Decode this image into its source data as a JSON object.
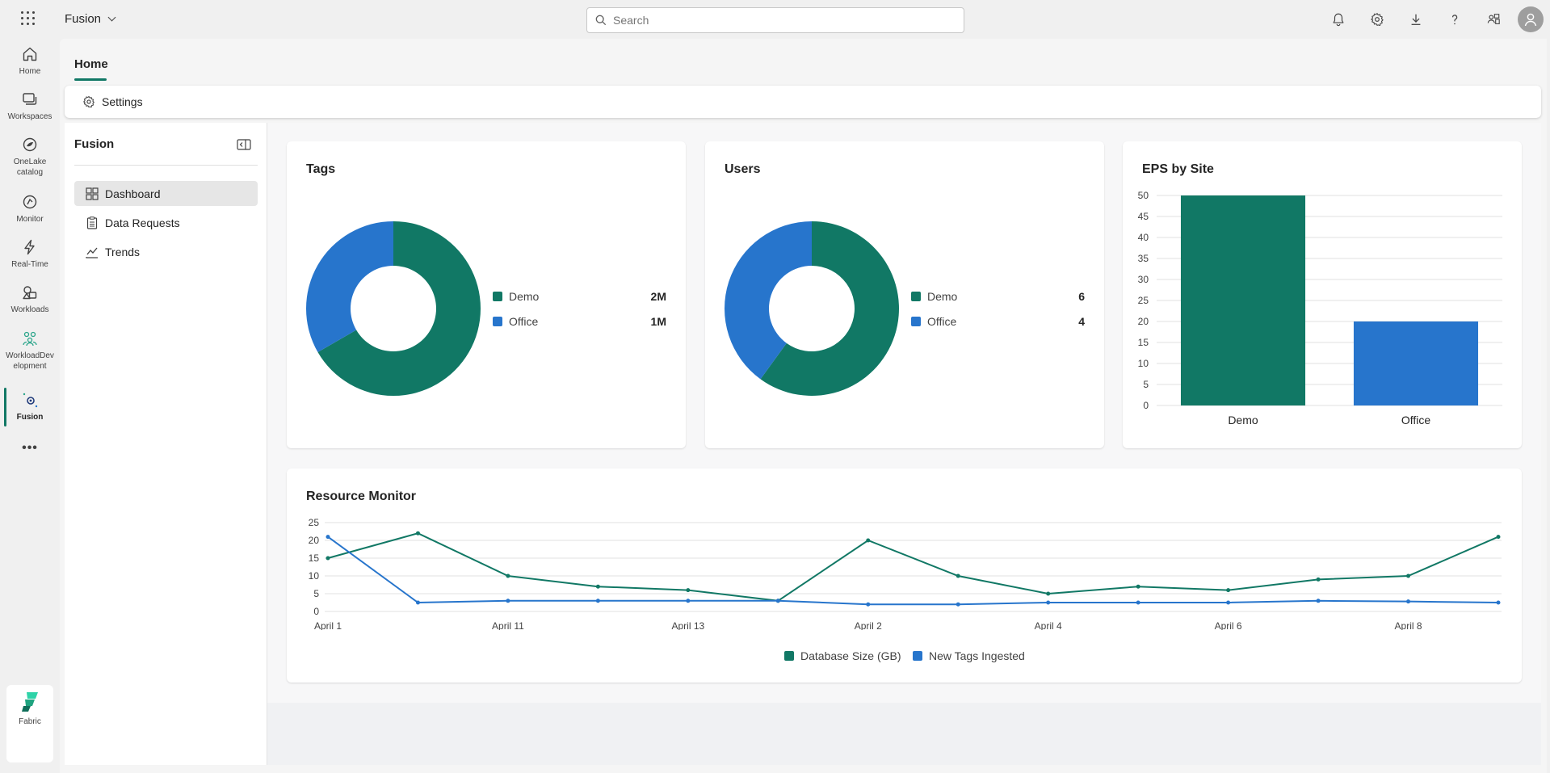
{
  "app": {
    "name": "Fusion"
  },
  "search": {
    "placeholder": "Search"
  },
  "header_icons": [
    "bell-icon",
    "gear-icon",
    "download-icon",
    "help-icon",
    "share-icon",
    "avatar"
  ],
  "leftnav": {
    "items": [
      {
        "label": "Home",
        "icon": "home-icon"
      },
      {
        "label": "Workspaces",
        "icon": "workspaces-icon"
      },
      {
        "label": "OneLake catalog",
        "icon": "onelake-icon"
      },
      {
        "label": "Monitor",
        "icon": "monitor-icon"
      },
      {
        "label": "Real-Time",
        "icon": "lightning-icon"
      },
      {
        "label": "Workloads",
        "icon": "workloads-icon"
      },
      {
        "label": "WorkloadDevelopment",
        "icon": "workload-dev-icon"
      },
      {
        "label": "Fusion",
        "icon": "fusion-icon"
      }
    ],
    "more_label": "•••",
    "fabric_label": "Fabric"
  },
  "tabs": {
    "home": "Home"
  },
  "settings_bar": {
    "label": "Settings"
  },
  "sidepanel": {
    "title": "Fusion",
    "items": [
      {
        "label": "Dashboard",
        "icon": "dashboard-icon"
      },
      {
        "label": "Data Requests",
        "icon": "clipboard-icon"
      },
      {
        "label": "Trends",
        "icon": "trend-icon"
      }
    ]
  },
  "colors": {
    "demo": "#117865",
    "office": "#2775cc",
    "accent": "#117865"
  },
  "cards": {
    "tags": {
      "title": "Tags",
      "legend": [
        {
          "label": "Demo",
          "value": "2M"
        },
        {
          "label": "Office",
          "value": "1M"
        }
      ]
    },
    "users": {
      "title": "Users",
      "legend": [
        {
          "label": "Demo",
          "value": "6"
        },
        {
          "label": "Office",
          "value": "4"
        }
      ]
    },
    "eps": {
      "title": "EPS by Site"
    },
    "resource": {
      "title": "Resource Monitor",
      "legend": [
        "Database Size (GB)",
        "New Tags Ingested"
      ]
    }
  },
  "chart_data": [
    {
      "type": "pie",
      "title": "Tags",
      "categories": [
        "Demo",
        "Office"
      ],
      "values": [
        2000000,
        1000000
      ]
    },
    {
      "type": "pie",
      "title": "Users",
      "categories": [
        "Demo",
        "Office"
      ],
      "values": [
        6,
        4
      ]
    },
    {
      "type": "bar",
      "title": "EPS by Site",
      "categories": [
        "Demo",
        "Office"
      ],
      "values": [
        50,
        20
      ],
      "ylim": [
        0,
        50
      ],
      "yticks": [
        0,
        5,
        10,
        15,
        20,
        25,
        30,
        35,
        40,
        45,
        50
      ],
      "grid": true
    },
    {
      "type": "line",
      "title": "Resource Monitor",
      "x_tick_labels": [
        "April 1",
        "April 11",
        "April 13",
        "April 2",
        "April 4",
        "April 6",
        "April 8"
      ],
      "n_points": 14,
      "ylim": [
        0,
        25
      ],
      "yticks": [
        0,
        5,
        10,
        15,
        20,
        25
      ],
      "grid": true,
      "legend_position": "bottom",
      "series": [
        {
          "name": "Database Size (GB)",
          "values": [
            15,
            22,
            10,
            7,
            6,
            3,
            20,
            10,
            5,
            7,
            6,
            9,
            10,
            21
          ]
        },
        {
          "name": "New Tags Ingested",
          "values": [
            21,
            2.5,
            3,
            3,
            3,
            3,
            2,
            2,
            2.5,
            2.5,
            2.5,
            3,
            2.8,
            2.5
          ]
        }
      ]
    }
  ]
}
